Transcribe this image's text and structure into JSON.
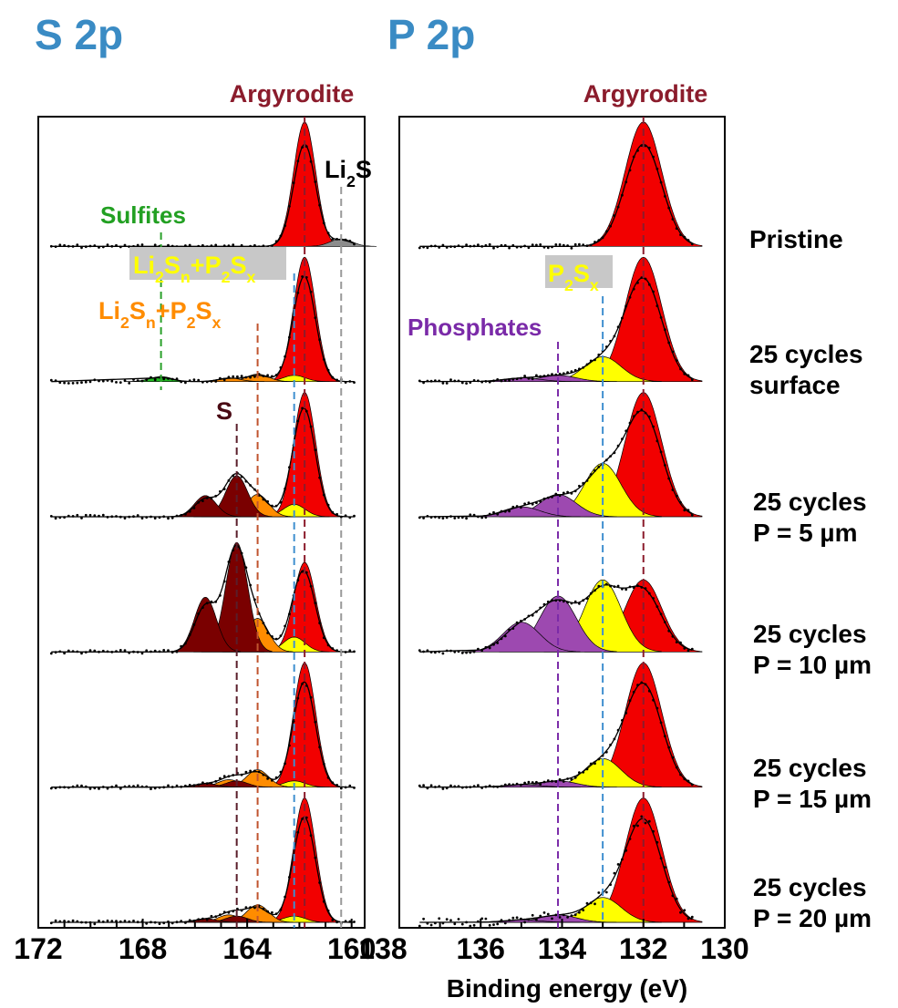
{
  "chart_data": {
    "type": "line",
    "panels": [
      {
        "title": "S 2p",
        "xlim": [
          172,
          159.5
        ],
        "xticks": [
          172,
          168,
          164,
          160
        ],
        "reference_lines": [
          {
            "label": "Argyrodite",
            "x": 161.8,
            "color": "#8b1c2c"
          },
          {
            "label": "Li2S",
            "x": 160.4,
            "color": "#9a9a9a"
          },
          {
            "label": "Li2Sn+P2Sx",
            "x": 162.2,
            "color": "#3f8fcf"
          },
          {
            "label": "Li2Sn+P2Sx",
            "x": 163.6,
            "color": "#c0542e"
          },
          {
            "label": "S",
            "x": 164.4,
            "color": "#5a1e2a"
          },
          {
            "label": "Sulfites",
            "x": 167.3,
            "color": "#2aa02a"
          }
        ]
      },
      {
        "title": "P 2p",
        "xlim": [
          138,
          130
        ],
        "xticks": [
          138,
          136,
          134,
          132,
          130
        ],
        "reference_lines": [
          {
            "label": "Argyrodite",
            "x": 132.0,
            "color": "#8b1c2c"
          },
          {
            "label": "P2Sx",
            "x": 133.0,
            "color": "#3f8fcf"
          },
          {
            "label": "Phosphates",
            "x": 134.1,
            "color": "#7a2aa8"
          }
        ]
      }
    ],
    "xlabel": "Binding energy (eV)",
    "spectra": [
      "Pristine",
      "25 cycles surface",
      "25 cycles P = 5 µm",
      "25 cycles P = 10 µm",
      "25 cycles P = 15 µm",
      "25 cycles P = 20 µm"
    ],
    "components": {
      "S 2p": [
        {
          "name": "Argyrodite",
          "color": "#f20000",
          "position": 161.8,
          "height": [
            1.0,
            1.0,
            1.0,
            0.72,
            1.0,
            1.0
          ]
        },
        {
          "name": "Li2S",
          "color": "#8c8c8c",
          "position": 160.4,
          "height": [
            0.06,
            0,
            0,
            0,
            0,
            0
          ]
        },
        {
          "name": "Li2Sn+P2Sx (blue)",
          "color": "#ffff00",
          "position": 162.2,
          "height": [
            0,
            0.05,
            0.1,
            0.12,
            0.05,
            0.05
          ]
        },
        {
          "name": "Li2Sn+P2Sx (orange)",
          "color": "#ff8c00",
          "position": 163.6,
          "height": [
            0,
            0.06,
            0.18,
            0.27,
            0.14,
            0.14
          ]
        },
        {
          "name": "Li2Sn+P2Sx (low)",
          "color": "#ff8c00",
          "position": 164.7,
          "height": [
            0,
            0.03,
            0.08,
            0.15,
            0.06,
            0.06
          ]
        },
        {
          "name": "S",
          "color": "#7a0000",
          "position": 164.4,
          "height": [
            0,
            0,
            0.33,
            0.88,
            0.05,
            0.05
          ]
        },
        {
          "name": "S (high)",
          "color": "#7a0000",
          "position": 165.6,
          "height": [
            0,
            0,
            0.17,
            0.44,
            0.03,
            0.03
          ]
        },
        {
          "name": "Sulfites",
          "color": "#22bb22",
          "position": 167.3,
          "height": [
            0,
            0.04,
            0,
            0,
            0,
            0
          ]
        }
      ],
      "P 2p": [
        {
          "name": "Argyrodite",
          "color": "#f20000",
          "position": 132.0,
          "height": [
            1.0,
            1.0,
            1.0,
            0.58,
            1.0,
            1.0
          ]
        },
        {
          "name": "P2Sx",
          "color": "#ffff00",
          "position": 133.0,
          "height": [
            0,
            0.2,
            0.43,
            0.58,
            0.23,
            0.2
          ]
        },
        {
          "name": "Phosphates",
          "color": "#9d49b0",
          "position": 134.1,
          "height": [
            0,
            0.05,
            0.18,
            0.45,
            0.05,
            0.06
          ]
        },
        {
          "name": "Phosphates (high)",
          "color": "#9d49b0",
          "position": 135.0,
          "height": [
            0,
            0.03,
            0.08,
            0.24,
            0.02,
            0.02
          ]
        }
      ]
    }
  },
  "titles": {
    "s2p": "S 2p",
    "p2p": "P 2p"
  },
  "annotations": {
    "argyrodite_s": "Argyrodite",
    "argyrodite_p": "Argyrodite",
    "li2s": "Li2S",
    "sulfites": "Sulfites",
    "li2sn_p2sx_yellow": "Li2Sn+P2Sx",
    "li2sn_p2sx_orange": "Li2Sn+P2Sx",
    "s": "S",
    "phosphates": "Phosphates",
    "p2sx": "P2Sx"
  },
  "sample_labels": [
    [
      "Pristine"
    ],
    [
      "25 cycles",
      "surface"
    ],
    [
      "25 cycles",
      "P = 5 µm"
    ],
    [
      "25 cycles",
      "P = 10 µm"
    ],
    [
      "25 cycles",
      "P = 15 µm"
    ],
    [
      "25 cycles",
      "P = 20 µm"
    ]
  ],
  "colors": {
    "title": "#3a8bc4",
    "argyrodite_label": "#8b1c2c",
    "sulfites_label": "#22a022",
    "yellow_label": "#ffff00",
    "orange_label": "#ff8c00",
    "s_label": "#4a0a14",
    "phosphates_label": "#7a2aa8",
    "label_box": "#c8c8c8"
  }
}
